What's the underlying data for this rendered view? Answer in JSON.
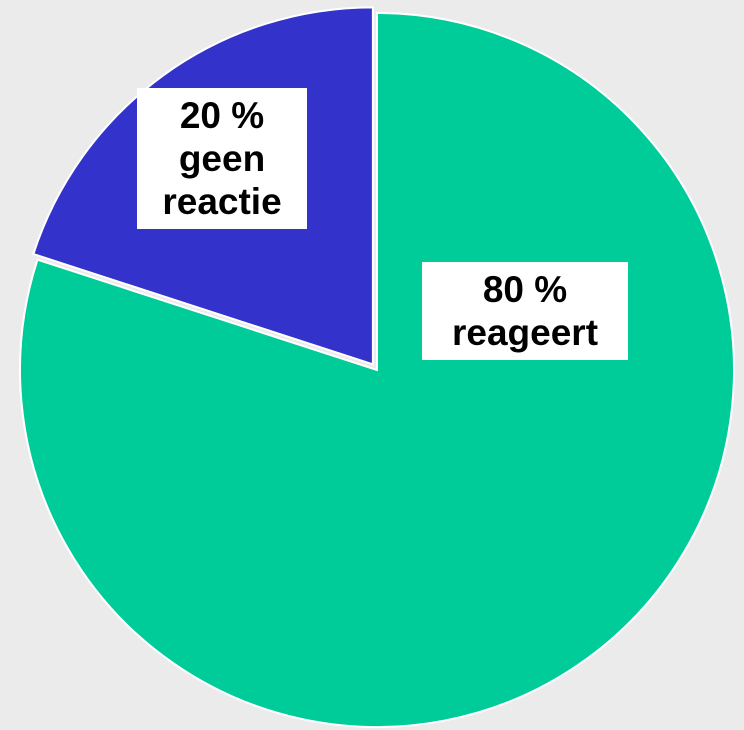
{
  "chart_data": {
    "type": "pie",
    "categories": [
      "reageert",
      "geen reactie"
    ],
    "values": [
      80,
      20
    ],
    "value_labels": [
      "80 %",
      "20 %"
    ],
    "colors": [
      "#00cc99",
      "#3333cc"
    ]
  }
}
